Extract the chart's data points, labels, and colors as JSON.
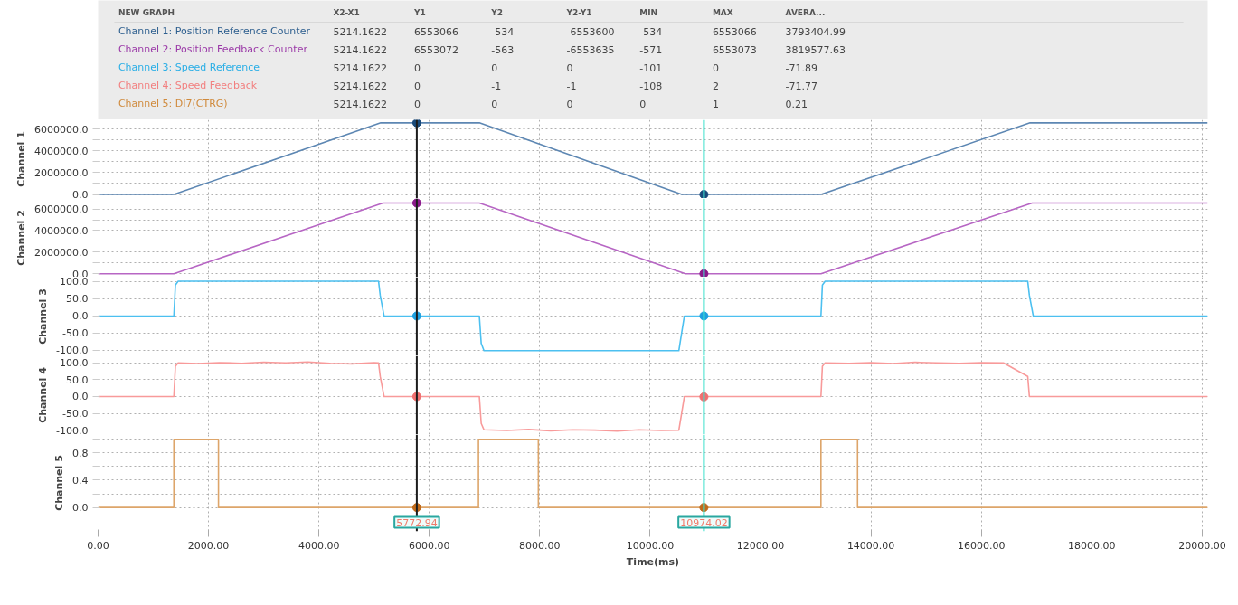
{
  "chart_data": [
    {
      "type": "other",
      "categories": [
        "NEW GRAPH",
        "X2-X1",
        "Y1",
        "Y2",
        "Y2-Y1",
        "MIN",
        "MAX",
        "AVERA..."
      ],
      "y_categories": [
        "Channel 1: Position Reference Counter",
        "Channel 2: Position Feedback Counter",
        "Channel 3: Speed Reference",
        "Channel 4: Speed Feedback",
        "Channel 5: DI7(CTRG)"
      ],
      "colors": [
        "#2e5f8f",
        "#9b3aa8",
        "#29aee6",
        "#f27f7f",
        "#d08a3c"
      ],
      "cell_labels": [
        [
          "5214.1622",
          "6553066",
          "-534",
          "-6553600",
          "-534",
          "6553066",
          "3793404.99"
        ],
        [
          "5214.1622",
          "6553072",
          "-563",
          "-6553635",
          "-571",
          "6553073",
          "3819577.63"
        ],
        [
          "5214.1622",
          "0",
          "0",
          "0",
          "-101",
          "0",
          "-71.89"
        ],
        [
          "5214.1622",
          "0",
          "-1",
          "-1",
          "-108",
          "2",
          "-71.77"
        ],
        [
          "5214.1622",
          "0",
          "0",
          "0",
          "0",
          "1",
          "0.21"
        ]
      ]
    },
    {
      "type": "line",
      "ylabel": "Channel 1",
      "xlim": [
        0,
        20100
      ],
      "ylim": [
        -370000,
        6830000
      ],
      "tick_labels": "y",
      "grid": true,
      "yticks": [
        {
          "value": 0,
          "label": "0.0"
        },
        {
          "value": 1000000,
          "label": null
        },
        {
          "value": 2000000,
          "label": "2000000.0"
        },
        {
          "value": 3000000,
          "label": null
        },
        {
          "value": 4000000,
          "label": "4000000.0"
        },
        {
          "value": 5000000,
          "label": null
        },
        {
          "value": 6000000,
          "label": "6000000.0"
        }
      ],
      "xticks": [
        0,
        2000,
        4000,
        6000,
        8000,
        10000,
        12000,
        14000,
        16000,
        18000,
        20000
      ],
      "series": [
        {
          "type": "line",
          "color": "#5d87b3",
          "x": [
            0,
            1372,
            5120,
            6906,
            10574,
            13094,
            16882,
            20100
          ],
          "values": [
            -534,
            -534,
            6553066,
            6553066,
            -534,
            -534,
            6553066,
            6553066
          ]
        },
        {
          "type": "scatter",
          "color": "#1a4a7a",
          "x": [
            5772.94,
            10974.02
          ],
          "values": [
            6553066,
            -534
          ]
        }
      ],
      "ref_lines": [
        {
          "axis": "x",
          "value": 5772.94,
          "color": "#1c1c1c"
        },
        {
          "axis": "x",
          "value": 10974.02,
          "color": "#3ee0cc"
        }
      ]
    },
    {
      "type": "line",
      "ylabel": "Channel 2",
      "xlim": [
        0,
        20100
      ],
      "ylim": [
        -320000,
        6970000
      ],
      "tick_labels": "y",
      "grid": true,
      "yticks": [
        {
          "value": 0,
          "label": "0.0"
        },
        {
          "value": 1000000,
          "label": null
        },
        {
          "value": 2000000,
          "label": "2000000.0"
        },
        {
          "value": 3000000,
          "label": null
        },
        {
          "value": 4000000,
          "label": "4000000.0"
        },
        {
          "value": 5000000,
          "label": null
        },
        {
          "value": 6000000,
          "label": "6000000.0"
        }
      ],
      "xticks": [
        0,
        2000,
        4000,
        6000,
        8000,
        10000,
        12000,
        14000,
        16000,
        18000,
        20000
      ],
      "series": [
        {
          "type": "line",
          "color": "#b766c4",
          "x": [
            0,
            1372,
            5160,
            6906,
            10640,
            13094,
            16920,
            20100
          ],
          "values": [
            -563,
            -563,
            6553072,
            6553072,
            -563,
            -563,
            6553072,
            6553072
          ]
        },
        {
          "type": "scatter",
          "color": "#8b1a8b",
          "x": [
            5772.94,
            10974.02
          ],
          "values": [
            6553072,
            -563
          ]
        }
      ],
      "ref_lines": [
        {
          "axis": "x",
          "value": 5772.94,
          "color": "#1c1c1c"
        },
        {
          "axis": "x",
          "value": 10974.02,
          "color": "#3ee0cc"
        }
      ]
    },
    {
      "type": "line",
      "ylabel": "Channel 3",
      "xlim": [
        0,
        20100
      ],
      "ylim": [
        -116,
        113
      ],
      "tick_labels": "y",
      "grid": true,
      "yticks": [
        {
          "value": -100,
          "label": "-100.0"
        },
        {
          "value": -50,
          "label": "-50.0"
        },
        {
          "value": 0,
          "label": "0.0"
        },
        {
          "value": 50,
          "label": "50.0"
        },
        {
          "value": 100,
          "label": "100.0"
        }
      ],
      "xticks": [
        0,
        2000,
        4000,
        6000,
        8000,
        10000,
        12000,
        14000,
        16000,
        18000,
        20000
      ],
      "series": [
        {
          "type": "line",
          "color": "#4cc0f0",
          "x": [
            0,
            1372,
            1400,
            1450,
            5080,
            5110,
            5180,
            6906,
            6940,
            6990,
            10520,
            10560,
            10620,
            13094,
            13120,
            13170,
            16840,
            16870,
            16940,
            20100
          ],
          "values": [
            0,
            0,
            90,
            101,
            101,
            60,
            0,
            0,
            -80,
            -101,
            -101,
            -60,
            0,
            0,
            90,
            101,
            101,
            60,
            0,
            0
          ]
        },
        {
          "type": "scatter",
          "color": "#1ea0e0",
          "x": [
            5772.94,
            10974.02
          ],
          "values": [
            0,
            0
          ]
        }
      ],
      "ref_lines": [
        {
          "axis": "x",
          "value": 5772.94,
          "color": "#1c1c1c"
        },
        {
          "axis": "x",
          "value": 10974.02,
          "color": "#3ee0cc"
        }
      ]
    },
    {
      "type": "line",
      "ylabel": "Channel 4",
      "xlim": [
        0,
        20100
      ],
      "ylim": [
        -113,
        121
      ],
      "tick_labels": "y",
      "grid": true,
      "yticks": [
        {
          "value": -100,
          "label": "-100.0"
        },
        {
          "value": -50,
          "label": "-50.0"
        },
        {
          "value": 0,
          "label": "0.0"
        },
        {
          "value": 50,
          "label": "50.0"
        },
        {
          "value": 100,
          "label": "100.0"
        }
      ],
      "xticks": [
        0,
        2000,
        4000,
        6000,
        8000,
        10000,
        12000,
        14000,
        16000,
        18000,
        20000
      ],
      "series": [
        {
          "type": "line",
          "color": "#f89a9a",
          "x": [
            0,
            1372,
            1400,
            1450,
            1800,
            2200,
            2600,
            3000,
            3400,
            3800,
            4200,
            4600,
            5000,
            5080,
            5110,
            5180,
            6906,
            6940,
            6990,
            7400,
            7800,
            8200,
            8600,
            9000,
            9400,
            9800,
            10200,
            10520,
            10560,
            10620,
            13094,
            13120,
            13170,
            13600,
            14000,
            14400,
            14800,
            15200,
            15600,
            16000,
            16400,
            16840,
            16870,
            16940,
            20100
          ],
          "values": [
            0,
            0,
            90,
            100,
            98,
            101,
            99,
            102,
            100,
            103,
            99,
            97,
            101,
            100,
            60,
            0,
            0,
            -80,
            -99,
            -101,
            -98,
            -102,
            -99,
            -100,
            -103,
            -99,
            -101,
            -100,
            -60,
            0,
            0,
            90,
            100,
            99,
            101,
            98,
            102,
            100,
            99,
            101,
            100,
            60,
            0,
            0,
            0
          ]
        },
        {
          "type": "scatter",
          "color": "#f07070",
          "x": [
            5772.94,
            10974.02
          ],
          "values": [
            0,
            -1
          ]
        }
      ],
      "ref_lines": [
        {
          "axis": "x",
          "value": 5772.94,
          "color": "#1c1c1c"
        },
        {
          "axis": "x",
          "value": 10974.02,
          "color": "#3ee0cc"
        }
      ]
    },
    {
      "type": "step",
      "ylabel": "Channel 5",
      "xlabel": "Time(ms)",
      "xlim": [
        0,
        20100
      ],
      "ylim": [
        -0.35,
        1.07
      ],
      "grid": true,
      "yticks": [
        {
          "value": 0,
          "label": "0.0"
        },
        {
          "value": 0.2,
          "label": null
        },
        {
          "value": 0.4,
          "label": "0.4"
        },
        {
          "value": 0.6,
          "label": null
        },
        {
          "value": 0.8,
          "label": "0.8"
        },
        {
          "value": 1,
          "label": null
        }
      ],
      "xticks": [
        {
          "value": 0,
          "label": "0.00"
        },
        {
          "value": 2000,
          "label": "2000.00"
        },
        {
          "value": 4000,
          "label": "4000.00"
        },
        {
          "value": 6000,
          "label": "6000.00"
        },
        {
          "value": 8000,
          "label": "8000.00"
        },
        {
          "value": 10000,
          "label": "10000.00"
        },
        {
          "value": 12000,
          "label": "12000.00"
        },
        {
          "value": 14000,
          "label": "14000.00"
        },
        {
          "value": 16000,
          "label": "16000.00"
        },
        {
          "value": 18000,
          "label": "18000.00"
        },
        {
          "value": 20000,
          "label": "20000.00"
        }
      ],
      "series": [
        {
          "type": "step",
          "color": "#dda56a",
          "x": [
            0,
            1372,
            2180,
            6890,
            7975,
            13094,
            13757,
            20100
          ],
          "values": [
            0,
            1,
            0,
            1,
            0,
            1,
            0,
            0
          ]
        },
        {
          "type": "scatter",
          "color": "#c06a1a",
          "x": [
            5772.94,
            10974.02
          ],
          "values": [
            0,
            0
          ]
        }
      ],
      "ref_lines": [
        {
          "axis": "x",
          "value": 5772.94,
          "color": "#1c1c1c",
          "label": "5772.94"
        },
        {
          "axis": "x",
          "value": 10974.02,
          "color": "#3ee0cc",
          "label": "10974.02"
        }
      ]
    }
  ]
}
